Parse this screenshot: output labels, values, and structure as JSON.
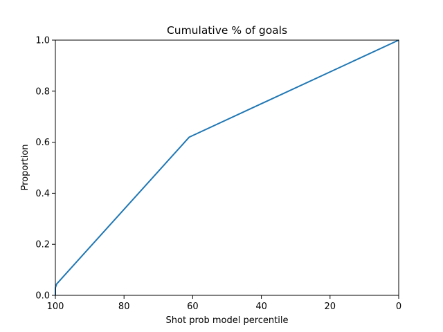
{
  "chart_data": {
    "type": "line",
    "title": "Cumulative % of goals",
    "xlabel": "Shot prob model percentile",
    "ylabel": "Proportion",
    "x": [
      100,
      100,
      99.6,
      61,
      0
    ],
    "values": [
      0,
      0.03,
      0.045,
      0.62,
      1.0
    ],
    "color": "#1f77b4",
    "xlim": [
      100,
      0
    ],
    "ylim": [
      0,
      1
    ],
    "xticks": [
      100,
      80,
      60,
      40,
      20,
      0
    ],
    "yticks": [
      {
        "value": 0,
        "label": "0.0"
      },
      {
        "value": 0.2,
        "label": "0.2"
      },
      {
        "value": 0.4,
        "label": "0.4"
      },
      {
        "value": 0.6,
        "label": "0.6"
      },
      {
        "value": 0.8,
        "label": "0.8"
      },
      {
        "value": 1,
        "label": "1.0"
      }
    ]
  }
}
